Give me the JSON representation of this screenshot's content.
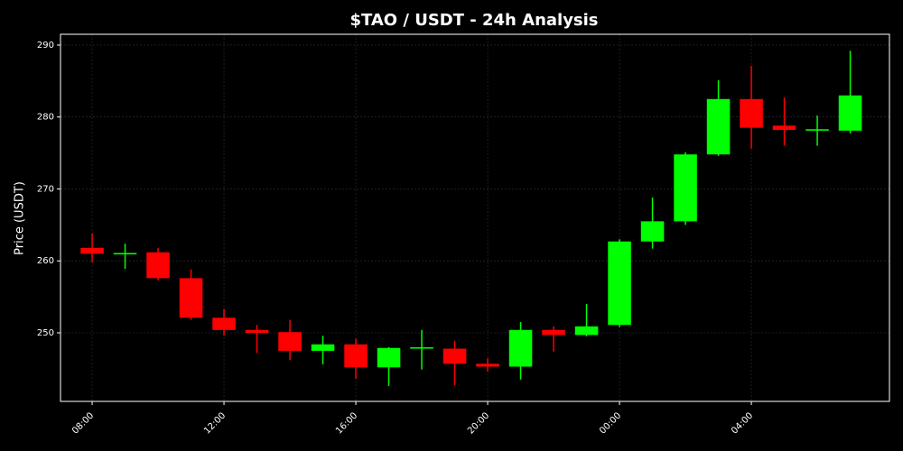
{
  "chart_data": {
    "type": "candlestick",
    "title": "$TAO / USDT - 24h Analysis",
    "y_label": "Price (USDT)",
    "x": [
      0,
      1,
      2,
      3,
      4,
      5,
      6,
      7,
      8,
      9,
      10,
      11,
      12,
      13,
      14,
      15,
      16,
      17,
      18,
      19,
      20,
      21,
      22,
      23
    ],
    "open": [
      261.8,
      260.9,
      261.2,
      257.6,
      252.1,
      250.4,
      250.1,
      247.5,
      248.4,
      245.2,
      247.8,
      247.8,
      245.7,
      245.3,
      250.4,
      249.7,
      251.1,
      262.7,
      265.5,
      274.8,
      282.5,
      278.8,
      278.1,
      278.1
    ],
    "high": [
      263.8,
      262.4,
      261.8,
      258.8,
      253.3,
      251.1,
      251.8,
      249.6,
      249.2,
      248.0,
      250.4,
      248.9,
      246.5,
      251.5,
      250.9,
      254.0,
      263.0,
      268.8,
      275.1,
      285.1,
      287.1,
      282.7,
      280.2,
      289.2
    ],
    "low": [
      259.8,
      258.9,
      257.3,
      251.8,
      249.6,
      247.2,
      246.2,
      245.6,
      243.6,
      242.6,
      244.9,
      242.7,
      244.6,
      243.5,
      247.4,
      249.5,
      250.8,
      261.7,
      265.0,
      274.6,
      275.6,
      276.0,
      276.0,
      277.7
    ],
    "close": [
      261.0,
      261.1,
      257.6,
      252.1,
      250.4,
      250.0,
      247.5,
      248.4,
      245.2,
      247.9,
      248.0,
      245.7,
      245.3,
      250.4,
      249.7,
      250.9,
      262.7,
      265.5,
      274.8,
      282.5,
      278.5,
      278.2,
      278.3,
      283.0
    ],
    "up_color": "#00ff00",
    "down_color": "#ff0000",
    "xlim": [
      -0.96,
      24.19
    ],
    "xticks": [
      {
        "value": 0,
        "label": "08:00"
      },
      {
        "value": 4,
        "label": "12:00"
      },
      {
        "value": 8,
        "label": "16:00"
      },
      {
        "value": 12,
        "label": "20:00"
      },
      {
        "value": 16,
        "label": "00:00"
      },
      {
        "value": 20,
        "label": "04:00"
      }
    ],
    "ylim": [
      240.47,
      291.5
    ],
    "yticks": [
      250,
      260,
      270,
      280,
      290
    ],
    "grid": true
  }
}
